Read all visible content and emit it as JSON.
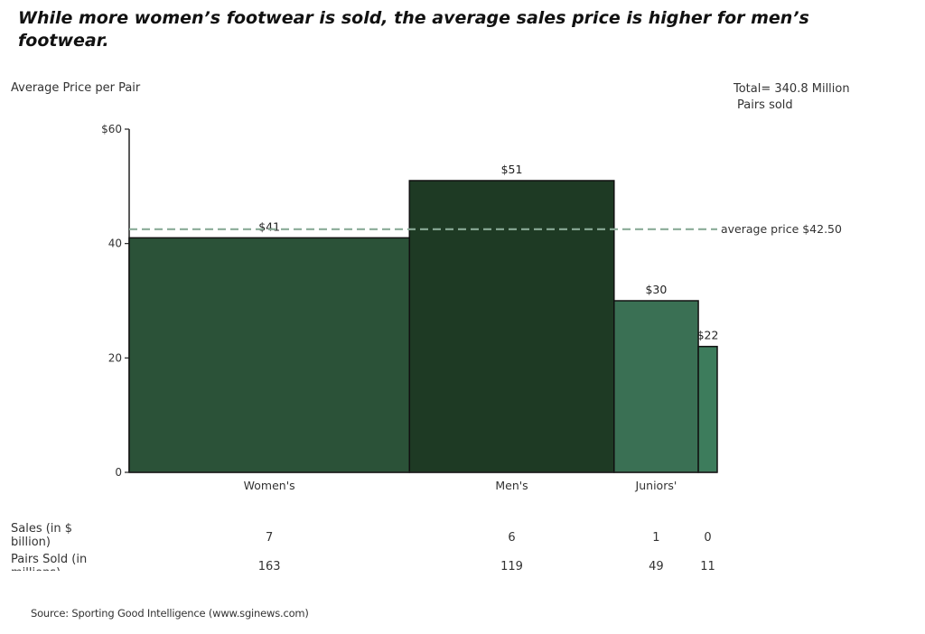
{
  "title": "While more women’s footwear is sold, the average sales price is higher for men’s footwear.",
  "total_note": [
    "Total= 340.8 Million",
    "Pairs sold"
  ],
  "source": "Source: Sporting Good Intelligence (www.sginews.com)",
  "table": {
    "rows": [
      {
        "label": "Sales (in $ billion)",
        "values": [
          "7",
          "6",
          "1",
          "0"
        ]
      },
      {
        "label": "Pairs Sold (in millions)",
        "values": [
          "163",
          "119",
          "49",
          "11"
        ]
      }
    ]
  },
  "colors": {
    "Women's": "#2b5238",
    "Men's": "#1e3a24",
    "Juniors'": "#3a7054",
    "fourth": "#3d7c5c",
    "average_line": "#8aab97"
  },
  "chart_data": {
    "type": "bar",
    "variable_width": true,
    "ylabel": "Average Price per Pair",
    "ylim": [
      0,
      60
    ],
    "yticks": [
      0,
      20,
      40,
      60
    ],
    "ytick_labels": [
      "0",
      "20",
      "40",
      "$60"
    ],
    "categories": [
      "Women's",
      "Men's",
      "Juniors'",
      ""
    ],
    "values": [
      41,
      51,
      30,
      22
    ],
    "value_labels": [
      "$41",
      "$51",
      "$30",
      "$22"
    ],
    "widths_pairs_sold_millions": [
      163,
      119,
      49,
      11
    ],
    "average_line": {
      "value": 42.5,
      "label": "average price  $42.50",
      "style": "dashed"
    }
  }
}
